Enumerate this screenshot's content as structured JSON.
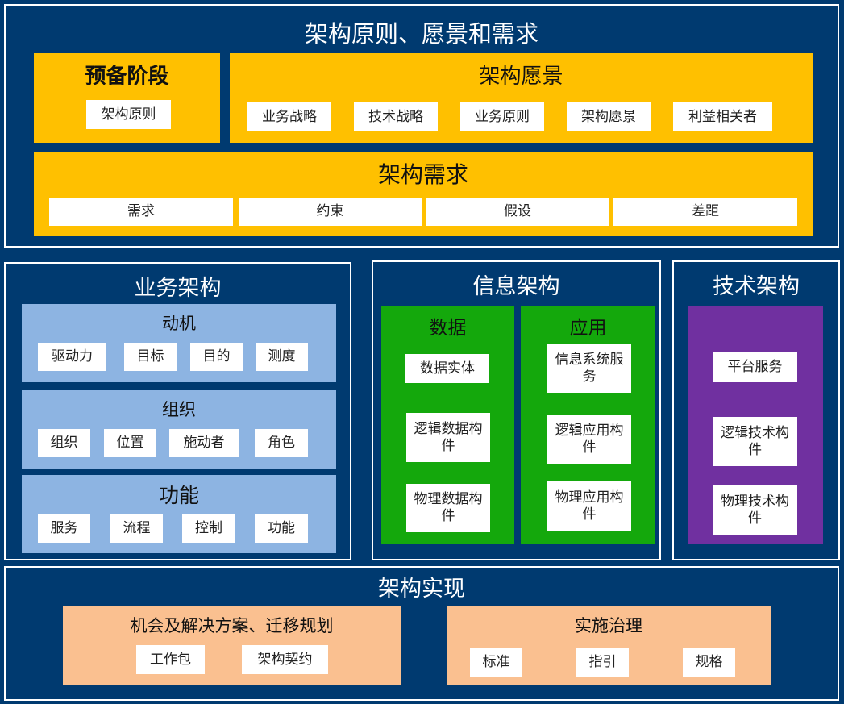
{
  "top": {
    "title": "架构原则、愿景和需求",
    "preliminary": {
      "title": "预备阶段",
      "items": [
        "架构原则"
      ]
    },
    "vision": {
      "title": "架构愿景",
      "items": [
        "业务战略",
        "技术战略",
        "业务原则",
        "架构愿景",
        "利益相关者"
      ]
    },
    "requirements": {
      "title": "架构需求",
      "items": [
        "需求",
        "约束",
        "假设",
        "差距"
      ]
    }
  },
  "business": {
    "title": "业务架构",
    "motivation": {
      "title": "动机",
      "items": [
        "驱动力",
        "目标",
        "目的",
        "测度"
      ]
    },
    "organization": {
      "title": "组织",
      "items": [
        "组织",
        "位置",
        "施动者",
        "角色"
      ]
    },
    "function": {
      "title": "功能",
      "items": [
        "服务",
        "流程",
        "控制",
        "功能"
      ]
    }
  },
  "information": {
    "title": "信息架构",
    "data": {
      "title": "数据",
      "items": [
        "数据实体",
        "逻辑数据构件",
        "物理数据构件"
      ]
    },
    "application": {
      "title": "应用",
      "items": [
        "信息系统服务",
        "逻辑应用构件",
        "物理应用构件"
      ]
    }
  },
  "technology": {
    "title": "技术架构",
    "items": [
      "平台服务",
      "逻辑技术构件",
      "物理技术构件"
    ]
  },
  "realization": {
    "title": "架构实现",
    "opportunities": {
      "title": "机会及解决方案、迁移规划",
      "items": [
        "工作包",
        "架构契约"
      ]
    },
    "governance": {
      "title": "实施治理",
      "items": [
        "标准",
        "指引",
        "规格"
      ]
    }
  },
  "colors": {
    "background": "#003a70",
    "yellow": "#ffc000",
    "light_blue": "#8db4e2",
    "green": "#14a80c",
    "purple": "#7030a0",
    "peach": "#fac090"
  }
}
